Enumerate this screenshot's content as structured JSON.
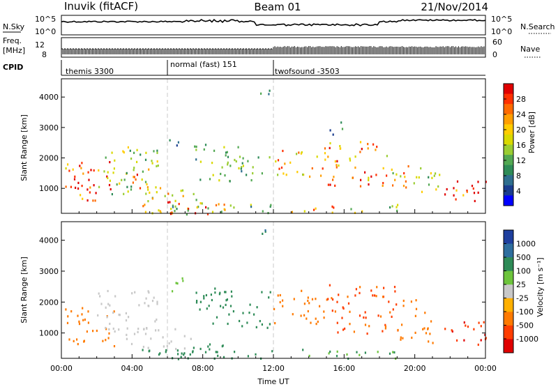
{
  "header": {
    "station": "Inuvik (fitACF)",
    "beam": "Beam 01",
    "date": "21/Nov/2014"
  },
  "status_panels": {
    "nsky_label": "N.Sky",
    "nsky_ticks": [
      "10^5",
      "10^0"
    ],
    "nsearch_label": "N.Search",
    "nsearch_ticks": [
      "10^5",
      "10^0"
    ],
    "freq_label_1": "Freq.",
    "freq_label_2": "[MHz]",
    "freq_ticks": [
      "12",
      "8"
    ],
    "nave_label": "Nave",
    "nave_ticks": [
      "60",
      "0"
    ],
    "cpid_label": "CPID",
    "cpid_modes": [
      {
        "name": "themis 3300",
        "start_hour": 0,
        "end_hour": 6
      },
      {
        "name": "normal (fast) 151",
        "start_hour": 6,
        "end_hour": 12
      },
      {
        "name": "twofsound -3503",
        "start_hour": 12,
        "end_hour": 24
      }
    ]
  },
  "chart_data": [
    {
      "type": "heatmap",
      "title": "",
      "ylabel": "Slant Range [km]",
      "xlabel": "",
      "x_range_hours": [
        0,
        24
      ],
      "ylim": [
        180,
        4600
      ],
      "y_ticks": [
        1000,
        2000,
        3000,
        4000
      ],
      "colorbar": {
        "label": "Power [dB]",
        "ticks": [
          "28",
          "24",
          "20",
          "16",
          "12",
          "8",
          "4"
        ],
        "colors": [
          "#e00000",
          "#ff3000",
          "#ff6a00",
          "#ff9e00",
          "#ffcc00",
          "#d9d900",
          "#9acd32",
          "#52a852",
          "#2e8b57",
          "#2e6e8e",
          "#1a3d8f",
          "#0000ff"
        ]
      },
      "patches": [
        {
          "t": [
            0.2,
            3.0
          ],
          "r": [
            600,
            1900
          ],
          "val": 27
        },
        {
          "t": [
            0.5,
            2.0
          ],
          "r": [
            900,
            1400
          ],
          "val": 30
        },
        {
          "t": [
            2.0,
            5.5
          ],
          "r": [
            700,
            2400
          ],
          "val": 14
        },
        {
          "t": [
            4.0,
            5.5
          ],
          "r": [
            1000,
            1700
          ],
          "val": 22
        },
        {
          "t": [
            4.5,
            8.0
          ],
          "r": [
            180,
            1100
          ],
          "val": 18
        },
        {
          "t": [
            5.5,
            9.5
          ],
          "r": [
            180,
            700
          ],
          "val": 26
        },
        {
          "t": [
            6.0,
            12.0
          ],
          "r": [
            180,
            500
          ],
          "val": 10
        },
        {
          "t": [
            6.0,
            7.0
          ],
          "r": [
            2400,
            2800
          ],
          "val": 6
        },
        {
          "t": [
            7.5,
            10.5
          ],
          "r": [
            1200,
            2500
          ],
          "val": 12
        },
        {
          "t": [
            10.0,
            11.8
          ],
          "r": [
            1300,
            2100
          ],
          "val": 10
        },
        {
          "t": [
            12.0,
            15.0
          ],
          "r": [
            1400,
            2400
          ],
          "val": 20
        },
        {
          "t": [
            13.0,
            15.5
          ],
          "r": [
            180,
            500
          ],
          "val": 24
        },
        {
          "t": [
            15.0,
            18.0
          ],
          "r": [
            1100,
            2600
          ],
          "val": 24
        },
        {
          "t": [
            16.0,
            19.0
          ],
          "r": [
            180,
            500
          ],
          "val": 14
        },
        {
          "t": [
            18.0,
            20.0
          ],
          "r": [
            1000,
            2100
          ],
          "val": 20
        },
        {
          "t": [
            20.0,
            21.5
          ],
          "r": [
            700,
            1700
          ],
          "val": 14
        },
        {
          "t": [
            21.5,
            24.0
          ],
          "r": [
            600,
            1400
          ],
          "val": 28
        },
        {
          "t": [
            15.0,
            16.0
          ],
          "r": [
            2800,
            3300
          ],
          "val": 6
        },
        {
          "t": [
            11.0,
            12.0
          ],
          "r": [
            4000,
            4400
          ],
          "val": 8
        }
      ]
    },
    {
      "type": "heatmap",
      "title": "",
      "ylabel": "Slant Range [km]",
      "xlabel": "Time UT",
      "x_range_hours": [
        0,
        24
      ],
      "x_ticks": [
        "00:00",
        "04:00",
        "08:00",
        "12:00",
        "16:00",
        "20:00",
        "00:00"
      ],
      "ylim": [
        180,
        4600
      ],
      "y_ticks": [
        1000,
        2000,
        3000,
        4000
      ],
      "colorbar": {
        "label": "Velocity [m s⁻¹]",
        "ticks": [
          "1000",
          "500",
          "100",
          "25",
          "-25",
          "-100",
          "-500",
          "-1000"
        ],
        "colors": [
          "#1e3f9e",
          "#2e6e9e",
          "#2e8b57",
          "#6dc43c",
          "#c8c8c8",
          "#ffb000",
          "#ff7a00",
          "#ff3d00",
          "#e00000"
        ]
      },
      "patches": [
        {
          "t": [
            0.2,
            3.0
          ],
          "r": [
            600,
            1900
          ],
          "val": -120
        },
        {
          "t": [
            2.0,
            5.5
          ],
          "r": [
            1000,
            2400
          ],
          "val": 0
        },
        {
          "t": [
            3.5,
            7.5
          ],
          "r": [
            500,
            1200
          ],
          "val": 5
        },
        {
          "t": [
            4.5,
            9.5
          ],
          "r": [
            180,
            700
          ],
          "val": 150
        },
        {
          "t": [
            6.0,
            7.0
          ],
          "r": [
            2300,
            2900
          ],
          "val": 40
        },
        {
          "t": [
            7.5,
            11.8
          ],
          "r": [
            1200,
            2500
          ],
          "val": 200
        },
        {
          "t": [
            6.0,
            12.0
          ],
          "r": [
            180,
            500
          ],
          "val": 150
        },
        {
          "t": [
            12.0,
            15.0
          ],
          "r": [
            1300,
            2400
          ],
          "val": -150
        },
        {
          "t": [
            15.0,
            19.0
          ],
          "r": [
            1000,
            2600
          ],
          "val": -350
        },
        {
          "t": [
            13.0,
            19.0
          ],
          "r": [
            180,
            500
          ],
          "val": 60
        },
        {
          "t": [
            19.0,
            21.0
          ],
          "r": [
            700,
            2100
          ],
          "val": -120
        },
        {
          "t": [
            21.5,
            24.0
          ],
          "r": [
            600,
            1400
          ],
          "val": -700
        },
        {
          "t": [
            11.0,
            12.0
          ],
          "r": [
            4000,
            4400
          ],
          "val": 300
        }
      ]
    }
  ]
}
